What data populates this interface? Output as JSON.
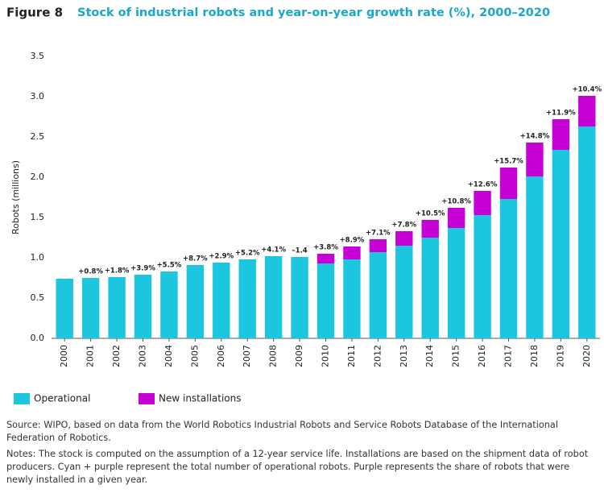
{
  "chart_data": {
    "type": "stacked_bar",
    "figure_label": "Figure 8",
    "title": "Stock of industrial robots and year-on-year growth rate (%), 2000–2020",
    "y_axis_label": "Robots (millions)",
    "categories": [
      "2000",
      "2001",
      "2002",
      "2003",
      "2004",
      "2005",
      "2006",
      "2007",
      "2008",
      "2009",
      "2010",
      "2011",
      "2012",
      "2013",
      "2014",
      "2015",
      "2016",
      "2017",
      "2018",
      "2019",
      "2020"
    ],
    "series": [
      {
        "name": "Operational",
        "color": "#1cc6df",
        "values": [
          0.74,
          0.75,
          0.76,
          0.79,
          0.83,
          0.91,
          0.94,
          0.98,
          1.02,
          1.01,
          0.93,
          0.98,
          1.07,
          1.15,
          1.25,
          1.37,
          1.53,
          1.73,
          2.01,
          2.34,
          2.63
        ]
      },
      {
        "name": "New installations",
        "color": "#c700d6",
        "values": [
          null,
          null,
          null,
          null,
          null,
          null,
          null,
          null,
          null,
          null,
          0.12,
          0.16,
          0.16,
          0.18,
          0.22,
          0.25,
          0.3,
          0.39,
          0.42,
          0.38,
          0.38
        ]
      }
    ],
    "annotations": [
      null,
      "+0.8%",
      "+1.8%",
      "+3.9%",
      "+5.5%",
      "+8.7%",
      "+2.9%",
      "+5.2%",
      "+4.1%",
      "–1.4",
      "+3.8%",
      "+8.9%",
      "+7.1%",
      "+7.8%",
      "+10.5%",
      "+10.8%",
      "+12.6%",
      "+15.7%",
      "+14.8%",
      "+11.9%",
      "+10.4%"
    ],
    "ylim": [
      0,
      3.5
    ],
    "yticks": [
      {
        "value": 0,
        "label": "0.0"
      },
      0.5,
      {
        "value": 1,
        "label": "1.0"
      },
      1.5,
      {
        "value": 2,
        "label": "2.0"
      },
      2.5,
      {
        "value": 3,
        "label": "3.0"
      },
      3.5
    ],
    "grid": false,
    "source": "Source: WIPO, based on data from the World Robotics Industrial Robots and Service Robots Database of the International Federation of Robotics.",
    "notes": "Notes: The stock is computed on the assumption of a 12-year service life. Installations are based on the shipment data of robot producers. Cyan + purple represent the total number of operational robots. Purple represents the share of robots that were newly installed in a given year."
  }
}
